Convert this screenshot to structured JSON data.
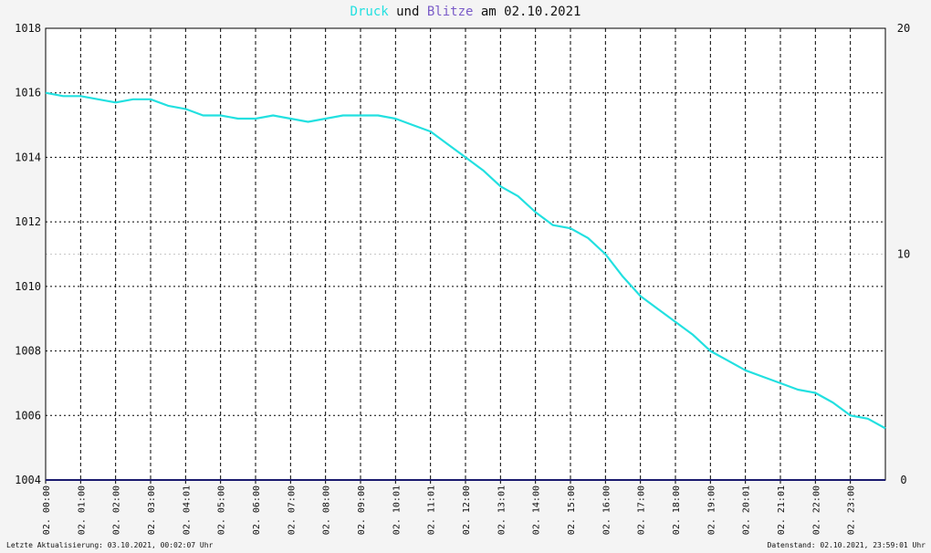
{
  "title": {
    "druck": "Druck",
    "und": "und",
    "blitze": "Blitze",
    "am": "am",
    "date": "02.10.2021"
  },
  "footer": {
    "left": "Letzte Aktualisierung: 03.10.2021, 00:02:07 Uhr",
    "right": "Datenstand: 02.10.2021, 23:59:01 Uhr"
  },
  "colors": {
    "druck": "#22e0e0",
    "blitze": "#7a5cc8",
    "blitze_line": "#1a1a6e",
    "grid": "#000000",
    "background": "#ffffff"
  },
  "chart_data": {
    "type": "line",
    "x_ticks": [
      "02. 00:00",
      "02. 01:00",
      "02. 02:00",
      "02. 03:00",
      "02. 04:01",
      "02. 05:00",
      "02. 06:00",
      "02. 07:00",
      "02. 08:00",
      "02. 09:00",
      "02. 10:01",
      "02. 11:01",
      "02. 12:00",
      "02. 13:01",
      "02. 14:00",
      "02. 15:00",
      "02. 16:00",
      "02. 17:00",
      "02. 18:00",
      "02. 19:00",
      "02. 20:01",
      "02. 21:01",
      "02. 22:00",
      "02. 23:00"
    ],
    "x_range_hours": [
      0,
      24
    ],
    "y_left": {
      "ticks": [
        "1004",
        "1006",
        "1008",
        "1010",
        "1012",
        "1014",
        "1016",
        "1018"
      ],
      "range": [
        1004,
        1018
      ]
    },
    "y_right": {
      "ticks": [
        "0",
        "10",
        "20"
      ],
      "range": [
        0,
        20
      ]
    },
    "grid": true,
    "series": [
      {
        "name": "Druck",
        "axis": "left",
        "x_hours": [
          0,
          0.5,
          1,
          1.5,
          2,
          2.5,
          3,
          3.5,
          4,
          4.5,
          5,
          5.5,
          6,
          6.5,
          7,
          7.5,
          8,
          8.5,
          9,
          9.5,
          10,
          10.5,
          11,
          11.5,
          12,
          12.5,
          13,
          13.5,
          14,
          14.5,
          15,
          15.5,
          16,
          16.5,
          17,
          17.5,
          18,
          18.5,
          19,
          19.5,
          20,
          20.5,
          21,
          21.5,
          22,
          22.5,
          23,
          23.5,
          24
        ],
        "values": [
          1016.0,
          1015.9,
          1015.9,
          1015.8,
          1015.7,
          1015.8,
          1015.8,
          1015.6,
          1015.5,
          1015.3,
          1015.3,
          1015.2,
          1015.2,
          1015.3,
          1015.2,
          1015.1,
          1015.2,
          1015.3,
          1015.3,
          1015.3,
          1015.2,
          1015.0,
          1014.8,
          1014.4,
          1014.0,
          1013.6,
          1013.1,
          1012.8,
          1012.3,
          1011.9,
          1011.8,
          1011.5,
          1011.0,
          1010.3,
          1009.7,
          1009.3,
          1008.9,
          1008.5,
          1008.0,
          1007.7,
          1007.4,
          1007.2,
          1007.0,
          1006.8,
          1006.7,
          1006.4,
          1006.0,
          1005.9,
          1005.6
        ]
      },
      {
        "name": "Blitze",
        "axis": "right",
        "x_hours": [
          0,
          24
        ],
        "values": [
          0,
          0
        ]
      }
    ]
  }
}
